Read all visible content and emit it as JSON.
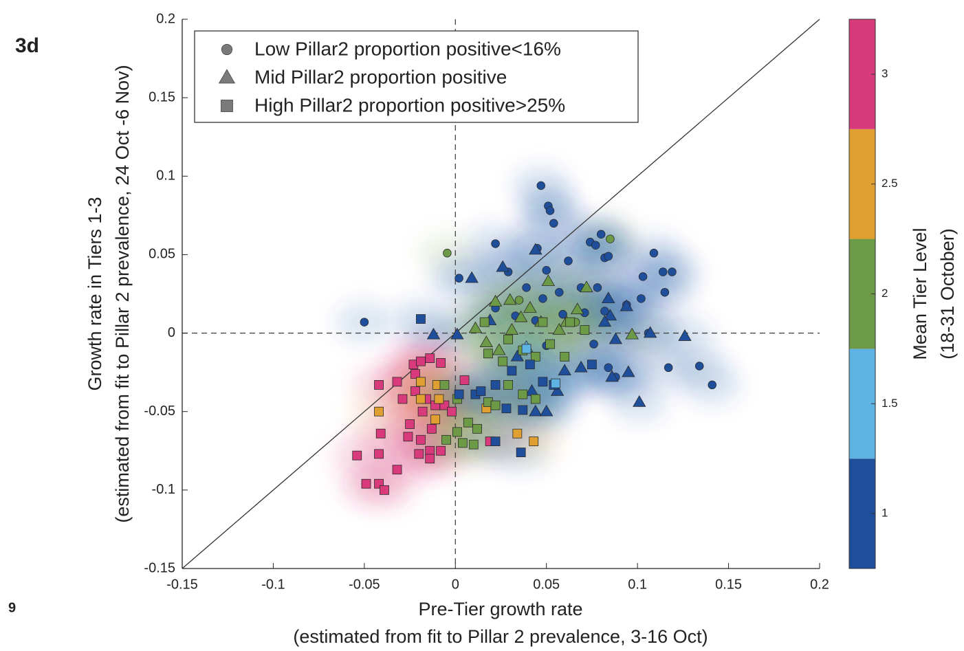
{
  "panel_label": "3d",
  "page_number": "9",
  "chart_data": {
    "type": "scatter",
    "x_label": [
      "Pre-Tier growth rate",
      "(estimated from fit to Pillar 2 prevalence, 3-16 Oct)"
    ],
    "y_label": [
      "Growth rate in Tiers 1-3",
      "(estimated from fit to Pillar 2 prevalence, 24 Oct -6 Nov)"
    ],
    "xlim": [
      -0.15,
      0.2
    ],
    "ylim": [
      -0.15,
      0.2
    ],
    "xticks": [
      -0.15,
      -0.1,
      -0.05,
      0,
      0.05,
      0.1,
      0.15,
      0.2
    ],
    "yticks": [
      -0.15,
      -0.1,
      -0.05,
      0,
      0.05,
      0.1,
      0.15,
      0.2
    ],
    "legend_position": "upper left",
    "colorbar": {
      "label": [
        "Mean Tier Level",
        "(18-31 October)"
      ],
      "lim": [
        0.75,
        3.25
      ],
      "ticks": [
        1,
        1.5,
        2,
        2.5,
        3
      ],
      "colors": [
        "#1f4f9a",
        "#5fb3e3",
        "#6d9a46",
        "#e09f31",
        "#d83a7b"
      ]
    },
    "series": [
      {
        "name": "Low Pillar2 proportion positive<16%",
        "marker": "circle",
        "x": [
          -0.05,
          -0.0045,
          0.047,
          0.051,
          0.052,
          0.054,
          0.022,
          0.002,
          0.074,
          0.077,
          0.08,
          0.085,
          0.082,
          0.084,
          0.109,
          0.103,
          0.114,
          0.119,
          0.115,
          0.102,
          0.106,
          0.117,
          0.134,
          0.141,
          0.084,
          0.088,
          0.062,
          0.05,
          0.039,
          0.048,
          0.057,
          0.069,
          0.078,
          0.082,
          0.071,
          0.059,
          0.044,
          0.033,
          0.022,
          0.029,
          0.05,
          0.076,
          0.094,
          0.045,
          0.035,
          0.066
        ],
        "values": [
          0.007,
          0.051,
          0.094,
          0.081,
          0.078,
          0.07,
          0.057,
          0.035,
          0.058,
          0.056,
          0.063,
          0.06,
          0.048,
          0.049,
          0.051,
          0.036,
          0.039,
          0.039,
          0.026,
          0.022,
          0,
          -0.022,
          -0.021,
          -0.033,
          -0.022,
          -0.028,
          0.046,
          0.04,
          0.029,
          0.022,
          0.026,
          0.029,
          0.029,
          0.014,
          0.013,
          0.012,
          0.008,
          0.011,
          0.016,
          0.039,
          -0.008,
          -0.007,
          0.018,
          0.054,
          0.021,
          0.007
        ],
        "tier": [
          1,
          2,
          1,
          1,
          1,
          1,
          1,
          1,
          1,
          1,
          1,
          2,
          1,
          1,
          1,
          1,
          1,
          1,
          1,
          1,
          1,
          1,
          1,
          1,
          1,
          1,
          1,
          1,
          1,
          1,
          1,
          1,
          1,
          1,
          1,
          1,
          1,
          1,
          1,
          1,
          1,
          1,
          1,
          1,
          2,
          2
        ]
      },
      {
        "name": "Mid Pillar2 proportion positive",
        "marker": "triangle",
        "x": [
          0.009,
          0.044,
          0.026,
          -0.012,
          0.001,
          0.011,
          0.017,
          0.022,
          0.03,
          0.051,
          0.072,
          0.084,
          0.085,
          0.094,
          0.097,
          0.107,
          0.126,
          0.082,
          0.088,
          0.095,
          0.086,
          0.101,
          0.056,
          0.042,
          0.044,
          0.05,
          0.036,
          0.047,
          0.057,
          0.061,
          0.067,
          0.041,
          0.031,
          0.019,
          0.024,
          0.034,
          0.06,
          0.069,
          0.039
        ],
        "values": [
          0.035,
          0.053,
          0.042,
          -0.001,
          -0.001,
          0.003,
          -0.006,
          0.02,
          0.021,
          0.033,
          0.029,
          0.022,
          0.011,
          0.017,
          -0.001,
          0,
          -0.002,
          0.007,
          -0.004,
          -0.025,
          -0.028,
          -0.044,
          -0.037,
          -0.037,
          -0.05,
          -0.05,
          0.01,
          0.007,
          0.002,
          0.007,
          0.015,
          0.016,
          0.002,
          0.008,
          -0.011,
          -0.015,
          -0.024,
          -0.022,
          -0.009
        ],
        "tier": [
          1,
          1,
          1,
          1,
          1,
          2,
          2,
          2,
          2,
          2,
          2,
          1,
          1,
          1,
          2,
          1,
          1,
          1,
          1,
          1,
          1,
          1,
          1,
          1,
          1,
          1,
          2,
          2,
          2,
          2,
          2,
          2,
          2,
          1,
          2,
          1,
          1,
          1,
          1.5
        ]
      },
      {
        "name": "High Pillar2 proportion positive>25%",
        "marker": "square",
        "x": [
          -0.054,
          -0.049,
          -0.042,
          -0.039,
          -0.032,
          -0.042,
          -0.041,
          -0.042,
          -0.029,
          -0.032,
          -0.023,
          -0.019,
          -0.014,
          -0.008,
          -0.022,
          -0.022,
          -0.016,
          -0.018,
          -0.011,
          -0.006,
          -0.002,
          -0.025,
          -0.026,
          -0.019,
          -0.013,
          -0.014,
          -0.008,
          -0.02,
          -0.014,
          0.019,
          0.005,
          -0.042,
          -0.019,
          -0.01,
          -0.009,
          -0.019,
          -0.011,
          0.017,
          0.034,
          0.043,
          -0.006,
          0.001,
          0.007,
          0.012,
          0.001,
          -0.005,
          0.004,
          0.01,
          0.018,
          0.022,
          0.029,
          0.037,
          0.044,
          0.026,
          0.018,
          0.029,
          0.037,
          0.044,
          0.052,
          0.06,
          0.048,
          0.063,
          0.071,
          0.016,
          -0.019,
          0.002,
          0.011,
          0.014,
          0.022,
          0.028,
          0.037,
          0.036,
          0.022,
          0.031,
          0.041,
          0.048,
          0.075,
          0.054,
          0.055,
          0.039
        ],
        "values": [
          -0.078,
          -0.096,
          -0.096,
          -0.1,
          -0.087,
          -0.077,
          -0.064,
          -0.033,
          -0.042,
          -0.031,
          -0.02,
          -0.018,
          -0.016,
          -0.019,
          -0.026,
          -0.037,
          -0.042,
          -0.05,
          -0.046,
          -0.046,
          -0.05,
          -0.058,
          -0.066,
          -0.068,
          -0.061,
          -0.075,
          -0.075,
          -0.077,
          -0.08,
          -0.069,
          -0.03,
          -0.05,
          -0.031,
          -0.033,
          -0.042,
          -0.042,
          -0.055,
          -0.048,
          -0.064,
          -0.069,
          -0.033,
          -0.042,
          -0.057,
          -0.061,
          -0.063,
          -0.068,
          -0.07,
          -0.071,
          -0.044,
          -0.046,
          -0.033,
          -0.039,
          -0.042,
          -0.018,
          -0.013,
          -0.004,
          -0.011,
          -0.015,
          -0.007,
          -0.015,
          0.007,
          0.007,
          0.002,
          0.007,
          0.009,
          -0.039,
          -0.039,
          -0.037,
          -0.033,
          -0.048,
          -0.049,
          -0.076,
          -0.069,
          -0.024,
          -0.02,
          -0.031,
          -0.02,
          -0.033,
          -0.032,
          -0.01
        ],
        "tier": [
          3,
          3,
          3,
          3,
          3,
          3,
          3,
          3,
          3,
          3,
          3,
          3,
          3,
          3,
          3,
          3,
          3,
          3,
          3,
          3,
          3,
          3,
          3,
          3,
          3,
          3,
          3,
          3,
          3,
          3,
          3,
          2.5,
          2.5,
          2.5,
          2.5,
          2.5,
          2.5,
          2.5,
          2.5,
          2.5,
          2,
          2,
          2,
          2,
          2,
          2,
          2,
          2,
          2,
          2,
          2,
          2,
          2,
          2,
          2,
          2,
          2,
          2,
          2,
          2,
          2,
          2,
          2,
          2,
          1,
          1,
          1,
          1,
          1,
          1,
          1,
          1,
          1,
          1,
          1,
          1,
          1,
          1,
          1.5,
          1.5
        ]
      }
    ]
  }
}
